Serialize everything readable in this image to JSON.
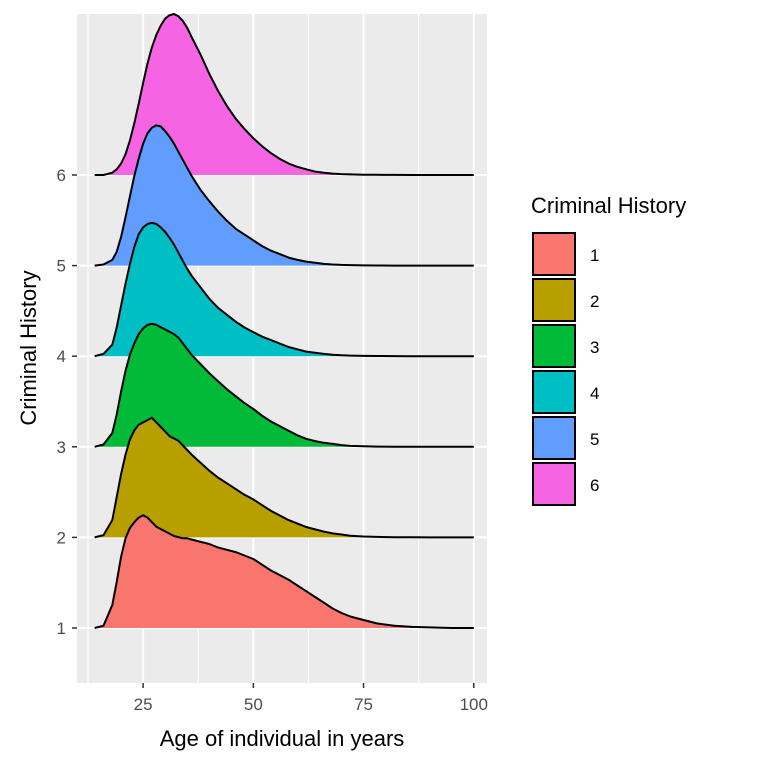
{
  "chart_data": {
    "type": "area",
    "subtype": "ridgeline",
    "xlabel": "Age of individual in years",
    "ylabel": "Criminal History",
    "xlim": [
      10,
      103
    ],
    "x_ticks": [
      25,
      50,
      75,
      100
    ],
    "x_tick_labels": [
      "25",
      "50",
      "75",
      "100"
    ],
    "y_categories": [
      "1",
      "2",
      "3",
      "4",
      "5",
      "6"
    ],
    "grid": true,
    "legend": {
      "title": "Criminal History",
      "position": "right"
    },
    "density_x": [
      14,
      16,
      18,
      19,
      20,
      21,
      22,
      23,
      24,
      25,
      26,
      27,
      28,
      29,
      30,
      31,
      32,
      33,
      34,
      35,
      36,
      38,
      40,
      42,
      44,
      46,
      48,
      50,
      52,
      54,
      56,
      58,
      60,
      62,
      64,
      66,
      68,
      70,
      72,
      75,
      78,
      82,
      86,
      90,
      95,
      100
    ],
    "series": [
      {
        "name": "1",
        "color": "#F8766D",
        "density": [
          0,
          0.02,
          0.2,
          0.4,
          0.62,
          0.78,
          0.87,
          0.92,
          0.96,
          0.98,
          0.96,
          0.92,
          0.88,
          0.86,
          0.84,
          0.82,
          0.8,
          0.79,
          0.78,
          0.78,
          0.77,
          0.75,
          0.73,
          0.7,
          0.68,
          0.66,
          0.63,
          0.6,
          0.55,
          0.5,
          0.46,
          0.42,
          0.37,
          0.32,
          0.27,
          0.22,
          0.17,
          0.13,
          0.1,
          0.07,
          0.04,
          0.02,
          0.01,
          0.005,
          0,
          0
        ]
      },
      {
        "name": "2",
        "color": "#B79F00",
        "density": [
          0,
          0.02,
          0.15,
          0.35,
          0.55,
          0.72,
          0.85,
          0.93,
          0.98,
          1.0,
          1.02,
          1.04,
          1.0,
          0.96,
          0.92,
          0.88,
          0.86,
          0.84,
          0.8,
          0.76,
          0.72,
          0.65,
          0.58,
          0.52,
          0.47,
          0.42,
          0.37,
          0.33,
          0.28,
          0.23,
          0.19,
          0.15,
          0.12,
          0.09,
          0.07,
          0.05,
          0.035,
          0.025,
          0.015,
          0.008,
          0.004,
          0.002,
          0.001,
          0,
          0,
          0
        ]
      },
      {
        "name": "3",
        "color": "#00BA38",
        "density": [
          0,
          0.02,
          0.12,
          0.28,
          0.48,
          0.66,
          0.8,
          0.9,
          0.98,
          1.03,
          1.06,
          1.07,
          1.06,
          1.04,
          1.02,
          1.0,
          0.98,
          0.95,
          0.9,
          0.85,
          0.8,
          0.72,
          0.64,
          0.57,
          0.5,
          0.44,
          0.38,
          0.33,
          0.27,
          0.22,
          0.18,
          0.14,
          0.1,
          0.07,
          0.05,
          0.035,
          0.025,
          0.015,
          0.008,
          0.004,
          0.002,
          0.001,
          0,
          0,
          0,
          0
        ]
      },
      {
        "name": "4",
        "color": "#00BFC4",
        "density": [
          0,
          0.02,
          0.1,
          0.25,
          0.44,
          0.63,
          0.8,
          0.95,
          1.06,
          1.12,
          1.15,
          1.16,
          1.15,
          1.12,
          1.08,
          1.03,
          0.97,
          0.9,
          0.83,
          0.76,
          0.7,
          0.6,
          0.5,
          0.42,
          0.36,
          0.3,
          0.25,
          0.21,
          0.17,
          0.14,
          0.11,
          0.08,
          0.06,
          0.04,
          0.03,
          0.02,
          0.012,
          0.008,
          0.005,
          0.003,
          0.002,
          0.001,
          0,
          0,
          0,
          0
        ]
      },
      {
        "name": "5",
        "color": "#619CFF",
        "density": [
          0,
          0.01,
          0.05,
          0.12,
          0.25,
          0.42,
          0.6,
          0.78,
          0.93,
          1.06,
          1.15,
          1.2,
          1.22,
          1.21,
          1.17,
          1.12,
          1.06,
          0.99,
          0.92,
          0.85,
          0.78,
          0.66,
          0.56,
          0.47,
          0.39,
          0.32,
          0.27,
          0.22,
          0.17,
          0.13,
          0.1,
          0.07,
          0.05,
          0.035,
          0.025,
          0.015,
          0.01,
          0.006,
          0.004,
          0.002,
          0.001,
          0,
          0,
          0,
          0,
          0
        ]
      },
      {
        "name": "6",
        "color": "#F564E3",
        "density": [
          0,
          0,
          0.02,
          0.05,
          0.1,
          0.18,
          0.3,
          0.45,
          0.62,
          0.8,
          0.97,
          1.11,
          1.22,
          1.3,
          1.36,
          1.39,
          1.4,
          1.38,
          1.34,
          1.28,
          1.2,
          1.05,
          0.88,
          0.73,
          0.6,
          0.49,
          0.4,
          0.32,
          0.25,
          0.19,
          0.14,
          0.1,
          0.07,
          0.05,
          0.03,
          0.02,
          0.012,
          0.008,
          0.005,
          0.003,
          0.002,
          0.001,
          0,
          0,
          0,
          0
        ]
      }
    ]
  }
}
